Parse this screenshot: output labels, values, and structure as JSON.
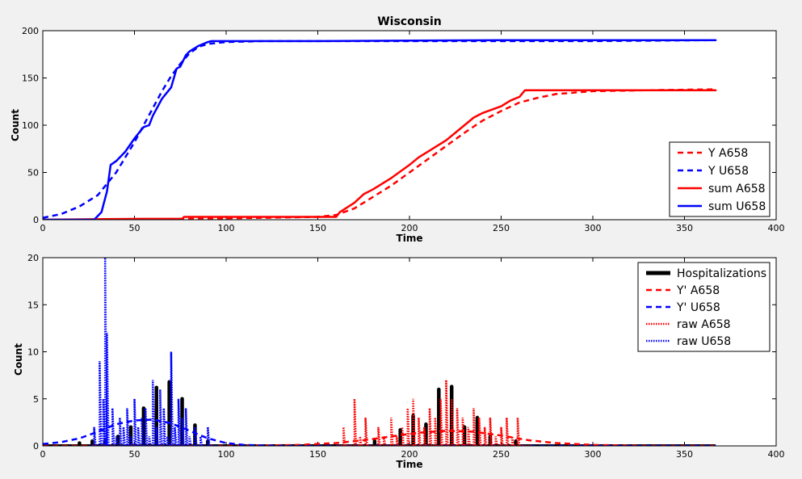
{
  "chart_data": [
    {
      "type": "line",
      "title": "Wisconsin",
      "xlabel": "Time",
      "ylabel": "Count",
      "xlim": [
        0,
        400
      ],
      "ylim": [
        0,
        200
      ],
      "xticks": [
        0,
        50,
        100,
        150,
        200,
        250,
        300,
        350,
        400
      ],
      "yticks": [
        0,
        50,
        100,
        150,
        200
      ],
      "legend_position": "lower-right",
      "series": [
        {
          "name": "Y A658",
          "color": "#ff0000",
          "style": "dashed",
          "x": [
            0,
            60,
            80,
            120,
            150,
            160,
            170,
            180,
            190,
            200,
            210,
            220,
            230,
            240,
            250,
            260,
            270,
            280,
            300,
            330,
            367
          ],
          "y": [
            0,
            0.5,
            1,
            2,
            3,
            5,
            12,
            24,
            36,
            50,
            64,
            78,
            92,
            105,
            115,
            124,
            129,
            133,
            136,
            137,
            138
          ]
        },
        {
          "name": "Y U658",
          "color": "#0000ff",
          "style": "dashed",
          "x": [
            0,
            10,
            20,
            30,
            35,
            40,
            45,
            50,
            55,
            60,
            65,
            70,
            75,
            80,
            85,
            90,
            100,
            120,
            200,
            300,
            367
          ],
          "y": [
            2,
            6,
            14,
            26,
            38,
            50,
            66,
            82,
            100,
            118,
            136,
            152,
            165,
            176,
            183,
            186,
            188,
            189,
            189,
            189,
            190
          ]
        },
        {
          "name": "sum A658",
          "color": "#ff0000",
          "style": "solid",
          "x": [
            0,
            55,
            76,
            77,
            160,
            162,
            170,
            175,
            180,
            190,
            200,
            205,
            210,
            220,
            225,
            230,
            235,
            240,
            250,
            255,
            260,
            263,
            280,
            367
          ],
          "y": [
            0,
            1,
            1,
            3,
            3,
            8,
            18,
            27,
            32,
            44,
            58,
            66,
            72,
            84,
            92,
            100,
            108,
            113,
            120,
            126,
            130,
            137,
            137,
            137
          ]
        },
        {
          "name": "sum U658",
          "color": "#0000ff",
          "style": "solid",
          "x": [
            0,
            28,
            32,
            35,
            37,
            40,
            45,
            50,
            55,
            58,
            60,
            65,
            70,
            73,
            75,
            78,
            80,
            85,
            90,
            92,
            150,
            250,
            367
          ],
          "y": [
            0,
            0,
            8,
            30,
            58,
            62,
            72,
            86,
            98,
            100,
            110,
            128,
            140,
            160,
            162,
            174,
            178,
            184,
            188,
            189,
            189,
            190,
            190
          ]
        }
      ]
    },
    {
      "type": "line",
      "title": "",
      "xlabel": "Time",
      "ylabel": "Count",
      "xlim": [
        0,
        400
      ],
      "ylim": [
        0,
        20
      ],
      "xticks": [
        0,
        50,
        100,
        150,
        200,
        250,
        300,
        350,
        400
      ],
      "yticks": [
        0,
        5,
        10,
        15,
        20
      ],
      "legend_position": "upper-right",
      "series": [
        {
          "name": "Hospitalizations",
          "color": "#000000",
          "style": "solid-thick",
          "x": [
            20,
            27,
            34,
            41,
            48,
            55,
            62,
            69,
            76,
            83,
            90,
            181,
            195,
            202,
            209,
            216,
            223,
            230,
            237,
            244,
            258
          ],
          "y": [
            0.3,
            0.5,
            0.5,
            1,
            2,
            4,
            6.2,
            6.8,
            5,
            2.2,
            0.5,
            0.5,
            1.7,
            3.2,
            2.3,
            6,
            6.3,
            2,
            3,
            1,
            0.5
          ]
        },
        {
          "name": "Y' A658",
          "color": "#ff0000",
          "style": "dashed",
          "x": [
            0,
            100,
            140,
            160,
            175,
            190,
            205,
            220,
            235,
            250,
            265,
            280,
            300,
            330,
            367
          ],
          "y": [
            0,
            0,
            0.1,
            0.3,
            0.6,
            1,
            1.4,
            1.6,
            1.5,
            1.1,
            0.6,
            0.3,
            0.1,
            0,
            0
          ]
        },
        {
          "name": "Y' U658",
          "color": "#0000ff",
          "style": "dashed",
          "x": [
            0,
            10,
            20,
            30,
            40,
            50,
            60,
            70,
            80,
            90,
            100,
            110,
            130,
            367
          ],
          "y": [
            0.2,
            0.4,
            0.8,
            1.5,
            2.3,
            2.7,
            2.8,
            2.4,
            1.6,
            0.8,
            0.3,
            0.1,
            0,
            0
          ]
        },
        {
          "name": "raw A658",
          "color": "#ff0000",
          "style": "dotted",
          "x": [
            160,
            164,
            167,
            170,
            173,
            176,
            180,
            183,
            186,
            190,
            193,
            196,
            199,
            202,
            205,
            208,
            211,
            214,
            217,
            220,
            223,
            226,
            229,
            232,
            235,
            238,
            241,
            244,
            247,
            250,
            253,
            256,
            259,
            262,
            266
          ],
          "y": [
            0,
            2,
            0,
            5,
            1,
            3,
            0,
            2,
            1,
            3,
            1,
            2,
            4,
            5,
            3,
            2,
            4,
            3,
            5,
            7,
            5,
            4,
            3,
            2,
            4,
            3,
            2,
            3,
            1,
            2,
            3,
            1,
            3,
            0,
            0
          ]
        },
        {
          "name": "raw U658",
          "color": "#0000ff",
          "style": "dotted",
          "x": [
            25,
            28,
            31,
            33,
            34,
            35,
            36,
            38,
            40,
            42,
            44,
            46,
            48,
            50,
            52,
            54,
            56,
            58,
            60,
            62,
            64,
            66,
            68,
            70,
            72,
            74,
            76,
            78,
            80,
            83,
            86,
            90,
            95
          ],
          "y": [
            0,
            2,
            9,
            5,
            20,
            12,
            0,
            4,
            1,
            3,
            2,
            4,
            1,
            5,
            2,
            3,
            4,
            1,
            7,
            2,
            6,
            4,
            1,
            10,
            2,
            5,
            3,
            4,
            1,
            2,
            1,
            2,
            0
          ]
        }
      ]
    }
  ]
}
